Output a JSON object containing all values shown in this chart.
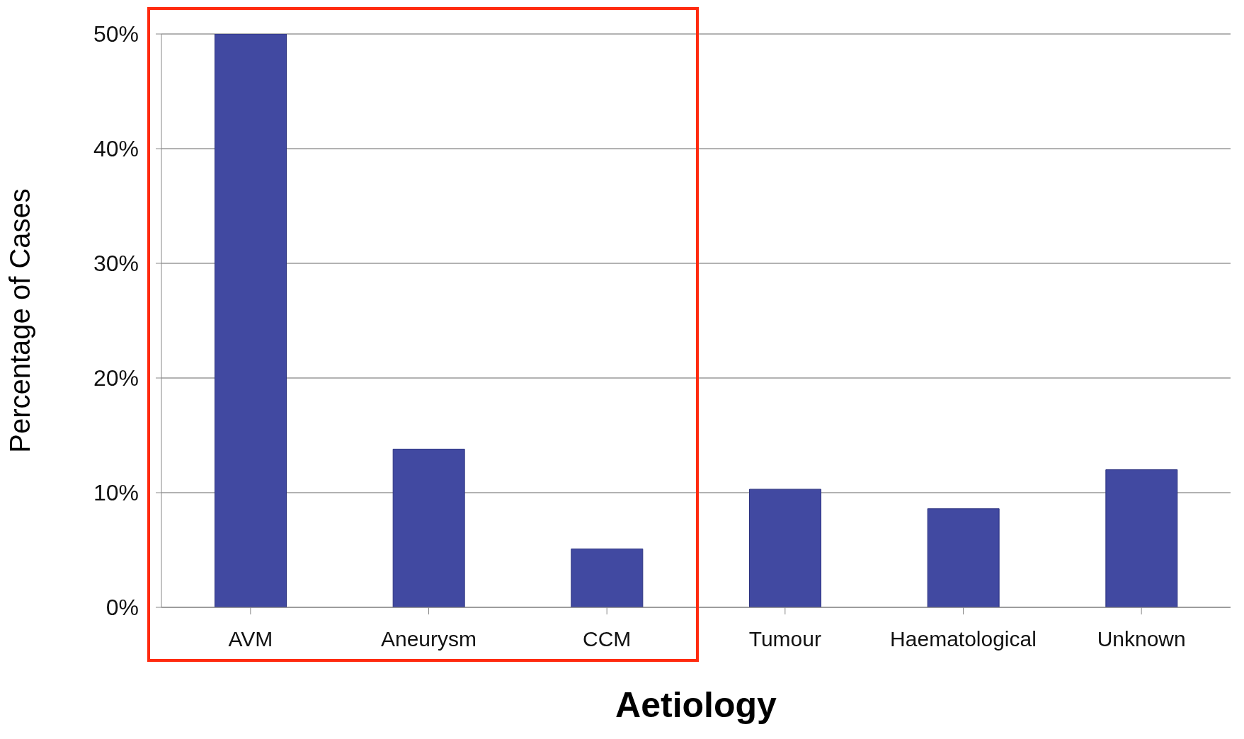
{
  "chart_data": {
    "type": "bar",
    "xlabel": "Aetiology",
    "ylabel": "Percentage of Cases",
    "categories": [
      "AVM",
      "Aneurysm",
      "CCM",
      "Tumour",
      "Haematological",
      "Unknown"
    ],
    "values": [
      50,
      13.8,
      5.1,
      10.3,
      8.6,
      12
    ],
    "color": "#4149a1",
    "ylim": [
      0,
      50
    ],
    "yticks": [
      {
        "value": 0,
        "label": "0%"
      },
      {
        "value": 10,
        "label": "10%"
      },
      {
        "value": 20,
        "label": "20%"
      },
      {
        "value": 30,
        "label": "30%"
      },
      {
        "value": 40,
        "label": "40%"
      },
      {
        "value": 50,
        "label": "50%"
      }
    ],
    "grid": "y"
  }
}
